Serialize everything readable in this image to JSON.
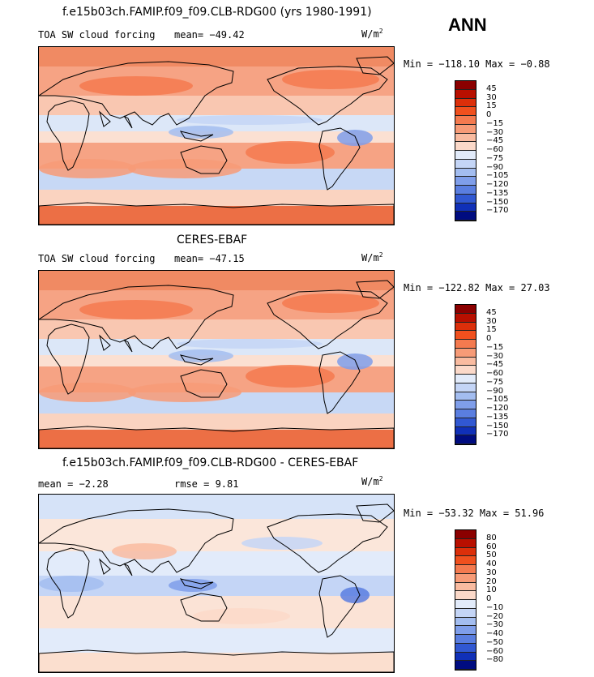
{
  "season": "ANN",
  "panels": [
    {
      "title": "f.e15b03ch.FAMIP.f09_f09.CLB-RDG00 (yrs 1980-1991)",
      "left_label": "TOA SW cloud forcing",
      "stat1": "mean= −49.42",
      "stat2": "",
      "units": "W/m",
      "units_exp": "2",
      "minmax": "Min = −118.10 Max =  −0.88",
      "colorbar": [
        "45",
        "30",
        "15",
        "0",
        "−15",
        "−30",
        "−45",
        "−60",
        "−75",
        "−90",
        "−105",
        "−120",
        "−135",
        "−150",
        "−170"
      ]
    },
    {
      "title": "CERES-EBAF",
      "left_label": "TOA SW cloud forcing",
      "stat1": "mean= −47.15",
      "stat2": "",
      "units": "W/m",
      "units_exp": "2",
      "minmax": "Min = −122.82 Max =  27.03",
      "colorbar": [
        "45",
        "30",
        "15",
        "0",
        "−15",
        "−30",
        "−45",
        "−60",
        "−75",
        "−90",
        "−105",
        "−120",
        "−135",
        "−150",
        "−170"
      ]
    },
    {
      "title": "f.e15b03ch.FAMIP.f09_f09.CLB-RDG00 - CERES-EBAF",
      "left_label": "mean =   −2.28",
      "stat1": "rmse =    9.81",
      "stat2": "",
      "units": "W/m",
      "units_exp": "2",
      "minmax": "Min = −53.32 Max =  51.96",
      "colorbar": [
        "80",
        "60",
        "50",
        "40",
        "30",
        "20",
        "10",
        "0",
        "−10",
        "−20",
        "−30",
        "−40",
        "−50",
        "−60",
        "−80"
      ]
    }
  ],
  "colors": {
    "main_scale": [
      "#8b0000",
      "#b80f00",
      "#dc2f0a",
      "#f0501e",
      "#f47a4f",
      "#f79b77",
      "#f9bba0",
      "#fbd9c9",
      "#e2ebfa",
      "#c4d5f6",
      "#a3bdf0",
      "#7f9eea",
      "#5a7ee0",
      "#3158d2",
      "#1030b8",
      "#000c80"
    ],
    "diff_scale": [
      "#8b0000",
      "#b80f00",
      "#dc2f0a",
      "#f0501e",
      "#f47a4f",
      "#f79b77",
      "#f9bba0",
      "#fbd9c9",
      "#e2ebfa",
      "#c4d5f6",
      "#a3bdf0",
      "#7f9eea",
      "#5a7ee0",
      "#3158d2",
      "#1030b8",
      "#000c80"
    ]
  }
}
